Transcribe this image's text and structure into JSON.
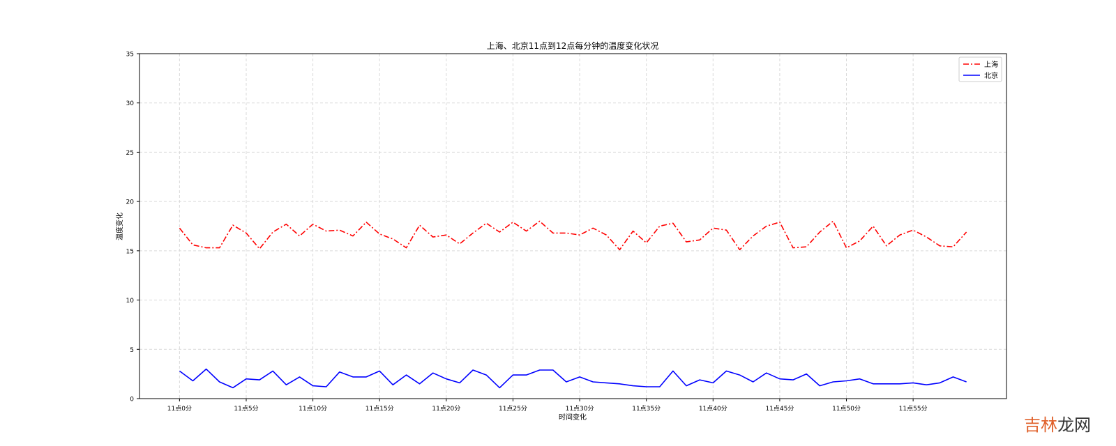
{
  "chart_data": {
    "type": "line",
    "title": "上海、北京11点到12点每分钟的温度变化状况",
    "xlabel": "时间变化",
    "ylabel": "温度变化",
    "ylim": [
      0,
      35
    ],
    "yticks": [
      0,
      5,
      10,
      15,
      20,
      25,
      30,
      35
    ],
    "xlim": [
      -3,
      62
    ],
    "xtick_values": [
      0,
      5,
      10,
      15,
      20,
      25,
      30,
      35,
      40,
      45,
      50,
      55
    ],
    "xtick_labels": [
      "11点0分",
      "11点5分",
      "11点10分",
      "11点15分",
      "11点20分",
      "11点25分",
      "11点30分",
      "11点35分",
      "11点40分",
      "11点45分",
      "11点50分",
      "11点55分"
    ],
    "grid": true,
    "legend_position": "top-right",
    "x": [
      0,
      1,
      2,
      3,
      4,
      5,
      6,
      7,
      8,
      9,
      10,
      11,
      12,
      13,
      14,
      15,
      16,
      17,
      18,
      19,
      20,
      21,
      22,
      23,
      24,
      25,
      26,
      27,
      28,
      29,
      30,
      31,
      32,
      33,
      34,
      35,
      36,
      37,
      38,
      39,
      40,
      41,
      42,
      43,
      44,
      45,
      46,
      47,
      48,
      49,
      50,
      51,
      52,
      53,
      54,
      55,
      56,
      57,
      58,
      59
    ],
    "series": [
      {
        "name": "上海",
        "color": "#ff0000",
        "style": "dashdot",
        "values": [
          17.3,
          15.6,
          15.3,
          15.3,
          17.6,
          16.8,
          15.2,
          16.9,
          17.7,
          16.5,
          17.7,
          17.0,
          17.1,
          16.5,
          17.9,
          16.7,
          16.2,
          15.3,
          17.6,
          16.4,
          16.6,
          15.7,
          16.8,
          17.8,
          16.9,
          17.9,
          17.0,
          18.0,
          16.8,
          16.8,
          16.6,
          17.3,
          16.6,
          15.1,
          17.0,
          15.8,
          17.5,
          17.8,
          15.9,
          16.1,
          17.3,
          17.1,
          15.1,
          16.5,
          17.5,
          17.9,
          15.3,
          15.4,
          16.9,
          18.0,
          15.3,
          16.0,
          17.5,
          15.5,
          16.6,
          17.1,
          16.4,
          15.5,
          15.4,
          16.9
        ]
      },
      {
        "name": "北京",
        "color": "#0000ff",
        "style": "solid",
        "values": [
          2.8,
          1.8,
          3.0,
          1.7,
          1.1,
          2.0,
          1.9,
          2.8,
          1.4,
          2.2,
          1.3,
          1.2,
          2.7,
          2.2,
          2.2,
          2.8,
          1.4,
          2.4,
          1.5,
          2.6,
          2.0,
          1.6,
          2.9,
          2.4,
          1.1,
          2.4,
          2.4,
          2.9,
          2.9,
          1.7,
          2.2,
          1.7,
          1.6,
          1.5,
          1.3,
          1.2,
          1.2,
          2.8,
          1.3,
          1.9,
          1.6,
          2.8,
          2.4,
          1.7,
          2.6,
          2.0,
          1.9,
          2.5,
          1.3,
          1.7,
          1.8,
          2.0,
          1.5,
          1.5,
          1.5,
          1.6,
          1.4,
          1.6,
          2.2,
          1.7
        ]
      }
    ]
  },
  "watermark": {
    "part1": "吉林",
    "part2": "龙网"
  }
}
